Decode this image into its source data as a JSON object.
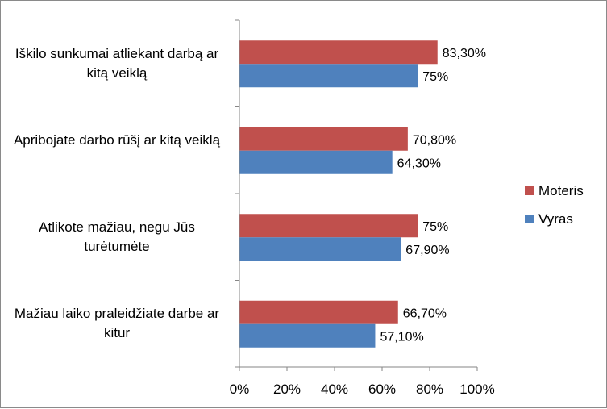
{
  "chart_data": {
    "type": "bar",
    "orientation": "horizontal",
    "categories": [
      "Iškilo sunkumai atliekant darbą ar kitą veiklą",
      "Apribojate darbo rūšį ar kitą veiklą",
      "Atlikote mažiau, negu Jūs turėtumėte",
      "Mažiau laiko praleidžiate darbe ar kitur"
    ],
    "series": [
      {
        "name": "Moteris",
        "color": "#c0504d",
        "values": [
          83.3,
          70.8,
          75,
          66.7
        ],
        "labels": [
          "83,30%",
          "70,80%",
          "75%",
          "66,70%"
        ]
      },
      {
        "name": "Vyras",
        "color": "#4f81bd",
        "values": [
          75,
          64.3,
          67.9,
          57.1
        ],
        "labels": [
          "75%",
          "64,30%",
          "67,90%",
          "57,10%"
        ]
      }
    ],
    "xlim": [
      0,
      100
    ],
    "x_ticks": [
      "0%",
      "20%",
      "40%",
      "60%",
      "80%",
      "100%"
    ],
    "grid": false,
    "legend_position": "right",
    "title": "",
    "xlabel": "",
    "ylabel": ""
  }
}
